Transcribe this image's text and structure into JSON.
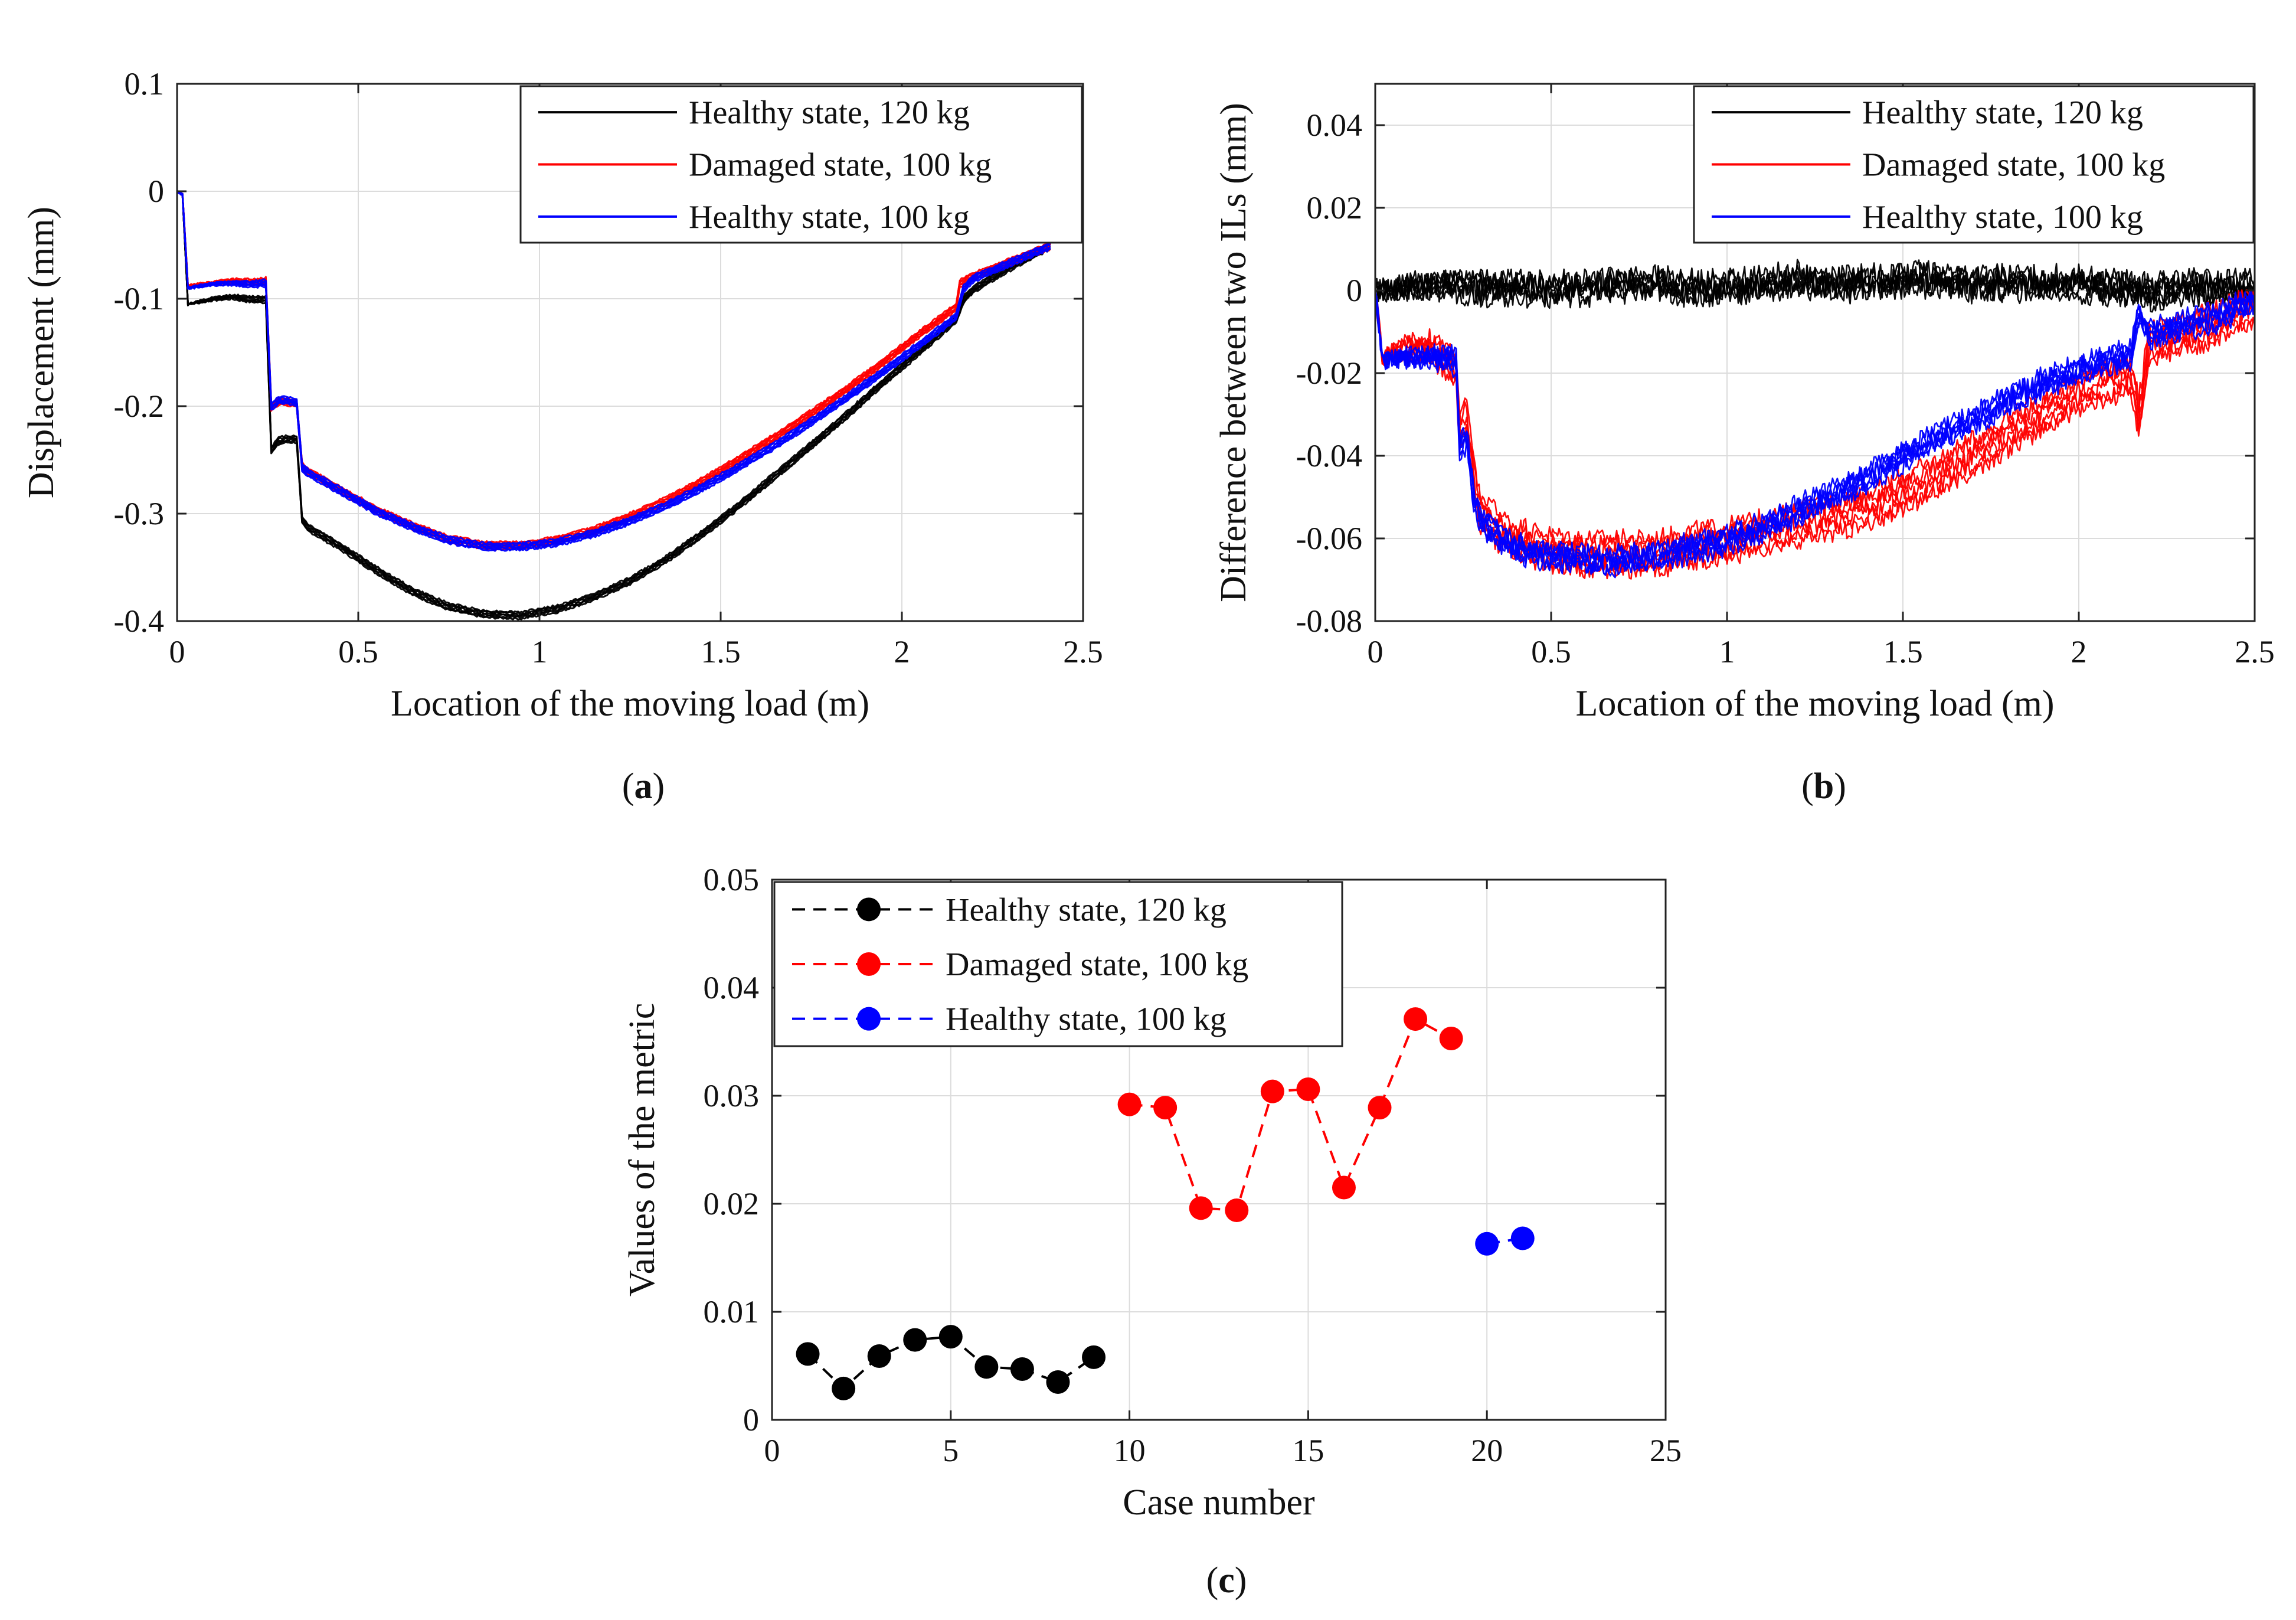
{
  "chart_data": [
    {
      "type": "line",
      "panel_label": "a",
      "xlabel": "Location of the moving load (m)",
      "ylabel": "Displacement (mm)",
      "xlim": [
        0,
        2.5
      ],
      "ylim": [
        -0.4,
        0.1
      ],
      "xticks": [
        0,
        0.5,
        1,
        1.5,
        2,
        2.5
      ],
      "xtick_labels": [
        "0",
        "0.5",
        "1",
        "1.5",
        "2",
        "2.5"
      ],
      "yticks": [
        -0.4,
        -0.3,
        -0.2,
        -0.1,
        0,
        0.1
      ],
      "ytick_labels": [
        "-0.4",
        "-0.3",
        "-0.2",
        "-0.1",
        "0",
        "0.1"
      ],
      "grid": true,
      "legend_position": "top-right",
      "series": [
        {
          "name": "Healthy state, 120 kg",
          "color": "#000000",
          "x": [
            0,
            0.015,
            0.03,
            0.1,
            0.15,
            0.2,
            0.245,
            0.26,
            0.28,
            0.3,
            0.33,
            0.345,
            0.36,
            0.45,
            0.55,
            0.65,
            0.75,
            0.85,
            0.95,
            1.05,
            1.15,
            1.25,
            1.35,
            1.45,
            1.55,
            1.65,
            1.75,
            1.85,
            1.95,
            2.05,
            2.15,
            2.17,
            2.2,
            2.3,
            2.41
          ],
          "y": [
            0,
            -0.003,
            -0.105,
            -0.1,
            -0.098,
            -0.1,
            -0.1,
            -0.24,
            -0.232,
            -0.23,
            -0.23,
            -0.305,
            -0.312,
            -0.33,
            -0.352,
            -0.372,
            -0.386,
            -0.393,
            -0.394,
            -0.388,
            -0.377,
            -0.362,
            -0.342,
            -0.318,
            -0.292,
            -0.264,
            -0.236,
            -0.207,
            -0.177,
            -0.148,
            -0.118,
            -0.1,
            -0.09,
            -0.07,
            -0.05
          ]
        },
        {
          "name": "Damaged state, 100 kg",
          "color": "#ff0000",
          "x": [
            0,
            0.015,
            0.03,
            0.1,
            0.15,
            0.2,
            0.245,
            0.26,
            0.28,
            0.3,
            0.33,
            0.345,
            0.36,
            0.45,
            0.55,
            0.65,
            0.75,
            0.85,
            0.95,
            1.05,
            1.15,
            1.25,
            1.35,
            1.45,
            1.55,
            1.65,
            1.75,
            1.85,
            1.95,
            2.05,
            2.15,
            2.16,
            2.2,
            2.3,
            2.41
          ],
          "y": [
            0,
            -0.003,
            -0.088,
            -0.085,
            -0.083,
            -0.084,
            -0.083,
            -0.2,
            -0.195,
            -0.195,
            -0.197,
            -0.255,
            -0.26,
            -0.277,
            -0.296,
            -0.311,
            -0.323,
            -0.329,
            -0.329,
            -0.324,
            -0.315,
            -0.302,
            -0.287,
            -0.269,
            -0.249,
            -0.228,
            -0.206,
            -0.183,
            -0.158,
            -0.132,
            -0.107,
            -0.085,
            -0.078,
            -0.065,
            -0.05
          ]
        },
        {
          "name": "Healthy state, 100 kg",
          "color": "#0000ff",
          "x": [
            0,
            0.015,
            0.03,
            0.1,
            0.15,
            0.2,
            0.245,
            0.26,
            0.28,
            0.3,
            0.33,
            0.345,
            0.36,
            0.45,
            0.55,
            0.65,
            0.75,
            0.85,
            0.95,
            1.05,
            1.15,
            1.25,
            1.35,
            1.45,
            1.55,
            1.65,
            1.75,
            1.85,
            1.95,
            2.05,
            2.15,
            2.17,
            2.2,
            2.3,
            2.41
          ],
          "y": [
            0,
            -0.003,
            -0.09,
            -0.086,
            -0.085,
            -0.086,
            -0.085,
            -0.2,
            -0.194,
            -0.194,
            -0.196,
            -0.256,
            -0.261,
            -0.278,
            -0.297,
            -0.312,
            -0.324,
            -0.33,
            -0.33,
            -0.326,
            -0.318,
            -0.306,
            -0.292,
            -0.275,
            -0.256,
            -0.236,
            -0.214,
            -0.191,
            -0.167,
            -0.142,
            -0.116,
            -0.09,
            -0.08,
            -0.066,
            -0.05
          ]
        }
      ]
    },
    {
      "type": "line",
      "panel_label": "b",
      "xlabel": "Location of the moving load (m)",
      "ylabel": "Difference between two ILs (mm)",
      "xlim": [
        0,
        2.5
      ],
      "ylim": [
        -0.08,
        0.05
      ],
      "xticks": [
        0,
        0.5,
        1,
        1.5,
        2,
        2.5
      ],
      "xtick_labels": [
        "0",
        "0.5",
        "1",
        "1.5",
        "2",
        "2.5"
      ],
      "yticks": [
        -0.08,
        -0.06,
        -0.04,
        -0.02,
        0,
        0.02,
        0.04
      ],
      "ytick_labels": [
        "-0.08",
        "-0.06",
        "-0.04",
        "-0.02",
        "0",
        "0.02",
        "0.04"
      ],
      "grid": true,
      "legend_position": "top-right",
      "series": [
        {
          "name": "Healthy state, 120 kg",
          "color": "#000000",
          "x": [
            0,
            0.1,
            0.2,
            0.3,
            0.4,
            0.5,
            0.6,
            0.7,
            0.8,
            0.9,
            1.0,
            1.1,
            1.2,
            1.3,
            1.4,
            1.5,
            1.6,
            1.7,
            1.8,
            1.9,
            2.0,
            2.1,
            2.2,
            2.3,
            2.4,
            2.5
          ],
          "y": [
            0,
            0.001,
            0.002,
            0.001,
            0.001,
            0.001,
            0.001,
            0.002,
            0.002,
            0.001,
            0.001,
            0.002,
            0.003,
            0.002,
            0.002,
            0.003,
            0.003,
            0.002,
            0.002,
            0.002,
            0.002,
            0.001,
            0.0,
            0.001,
            0.001,
            0.001
          ]
        },
        {
          "name": "Damaged state, 100 kg",
          "color": "#ff0000",
          "x": [
            0,
            0.02,
            0.08,
            0.15,
            0.2,
            0.23,
            0.24,
            0.26,
            0.28,
            0.3,
            0.35,
            0.4,
            0.5,
            0.6,
            0.7,
            0.8,
            0.9,
            1.0,
            1.1,
            1.2,
            1.3,
            1.4,
            1.5,
            1.6,
            1.7,
            1.8,
            1.9,
            2.0,
            2.1,
            2.15,
            2.17,
            2.2,
            2.3,
            2.4,
            2.5
          ],
          "y": [
            0,
            -0.016,
            -0.014,
            -0.013,
            -0.016,
            -0.018,
            -0.033,
            -0.03,
            -0.045,
            -0.053,
            -0.057,
            -0.06,
            -0.062,
            -0.063,
            -0.063,
            -0.063,
            -0.061,
            -0.06,
            -0.058,
            -0.056,
            -0.054,
            -0.052,
            -0.048,
            -0.044,
            -0.039,
            -0.034,
            -0.029,
            -0.024,
            -0.021,
            -0.02,
            -0.03,
            -0.012,
            -0.01,
            -0.007,
            -0.003
          ]
        },
        {
          "name": "Healthy state, 100 kg",
          "color": "#0000ff",
          "x": [
            0,
            0.02,
            0.08,
            0.15,
            0.2,
            0.23,
            0.24,
            0.26,
            0.28,
            0.3,
            0.35,
            0.4,
            0.5,
            0.6,
            0.7,
            0.8,
            0.9,
            1.0,
            1.1,
            1.2,
            1.3,
            1.4,
            1.5,
            1.6,
            1.7,
            1.8,
            1.9,
            2.0,
            2.1,
            2.15,
            2.17,
            2.2,
            2.3,
            2.4,
            2.5
          ],
          "y": [
            0,
            -0.017,
            -0.016,
            -0.016,
            -0.016,
            -0.017,
            -0.038,
            -0.035,
            -0.05,
            -0.055,
            -0.059,
            -0.062,
            -0.064,
            -0.065,
            -0.065,
            -0.064,
            -0.062,
            -0.06,
            -0.057,
            -0.053,
            -0.049,
            -0.045,
            -0.04,
            -0.035,
            -0.031,
            -0.026,
            -0.022,
            -0.019,
            -0.016,
            -0.015,
            -0.005,
            -0.01,
            -0.008,
            -0.006,
            -0.002
          ]
        }
      ]
    },
    {
      "type": "scatter",
      "panel_label": "c",
      "xlabel": "Case number",
      "ylabel": "Values of the metric",
      "xlim": [
        0,
        25
      ],
      "ylim": [
        0,
        0.05
      ],
      "xticks": [
        0,
        5,
        10,
        15,
        20,
        25
      ],
      "xtick_labels": [
        "0",
        "5",
        "10",
        "15",
        "20",
        "25"
      ],
      "yticks": [
        0,
        0.01,
        0.02,
        0.03,
        0.04,
        0.05
      ],
      "ytick_labels": [
        "0",
        "0.01",
        "0.02",
        "0.03",
        "0.04",
        "0.05"
      ],
      "grid": true,
      "legend_position": "top-left",
      "series": [
        {
          "name": "Healthy state, 120 kg",
          "color": "#000000",
          "x": [
            1,
            2,
            3,
            4,
            5,
            6,
            7,
            8,
            9
          ],
          "y": [
            0.0061,
            0.0029,
            0.0059,
            0.0074,
            0.0077,
            0.0049,
            0.0047,
            0.0035,
            0.0058
          ]
        },
        {
          "name": "Damaged state, 100 kg",
          "color": "#ff0000",
          "x": [
            10,
            11,
            12,
            13,
            14,
            15,
            16,
            17,
            18,
            19
          ],
          "y": [
            0.0292,
            0.0289,
            0.0196,
            0.0194,
            0.0304,
            0.0306,
            0.0215,
            0.0289,
            0.0371,
            0.0353
          ]
        },
        {
          "name": "Healthy state, 100 kg",
          "color": "#0000ff",
          "x": [
            20,
            21
          ],
          "y": [
            0.0163,
            0.0168
          ]
        }
      ]
    }
  ]
}
